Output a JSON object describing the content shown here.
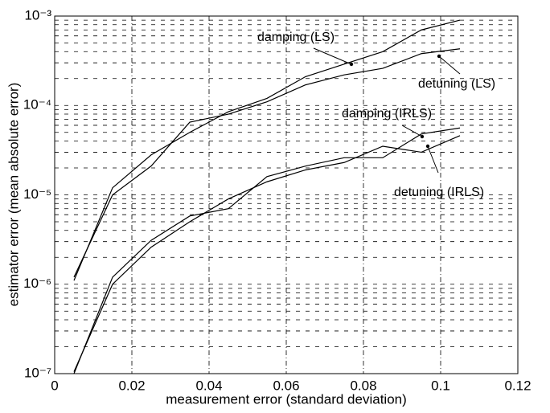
{
  "chart_data": {
    "type": "line",
    "x_label": "measurement error (standard deviation)",
    "y_label": "estimator error (mean absolute error)",
    "x": [
      0.005,
      0.015,
      0.025,
      0.035,
      0.045,
      0.055,
      0.065,
      0.075,
      0.085,
      0.095,
      0.105
    ],
    "series": [
      {
        "name": "damping (LS)",
        "color": "#000000",
        "values": [
          1.1e-06,
          1.2e-05,
          2.8e-05,
          5e-05,
          8.5e-05,
          0.00012,
          0.00021,
          0.00029,
          0.0004,
          0.0007,
          0.0009
        ]
      },
      {
        "name": "detuning (LS)",
        "color": "#000000",
        "values": [
          1.2e-06,
          1e-05,
          2.1e-05,
          6.5e-05,
          8e-05,
          0.00011,
          0.00017,
          0.00022,
          0.00026,
          0.00038,
          0.00043
        ]
      },
      {
        "name": "damping (IRLS)",
        "color": "#000000",
        "values": [
          1e-07,
          1.2e-06,
          3.1e-06,
          5.8e-06,
          7e-06,
          1.6e-05,
          2.1e-05,
          2.6e-05,
          2.6e-05,
          4.8e-05,
          5.6e-05
        ]
      },
      {
        "name": "detuning (IRLS)",
        "color": "#000000",
        "values": [
          1.05e-07,
          1e-06,
          2.6e-06,
          5e-06,
          9e-06,
          1.4e-05,
          1.9e-05,
          2.3e-05,
          3.5e-05,
          3e-05,
          4.6e-05
        ]
      }
    ],
    "xlim": [
      0,
      0.12
    ],
    "xticks": [
      0,
      0.02,
      0.04,
      0.06,
      0.08,
      0.1,
      0.12
    ],
    "ylim": [
      1e-07,
      0.001
    ],
    "y_log": true,
    "yticks": [
      {
        "value": 1e-07,
        "label": "10⁻⁷"
      },
      {
        "value": 1e-06,
        "label": "10⁻⁶"
      },
      {
        "value": 1e-05,
        "label": "10⁻⁵"
      },
      {
        "value": 0.0001,
        "label": "10⁻⁴"
      },
      {
        "value": 0.001,
        "label": "10⁻³"
      }
    ],
    "grid": true
  }
}
